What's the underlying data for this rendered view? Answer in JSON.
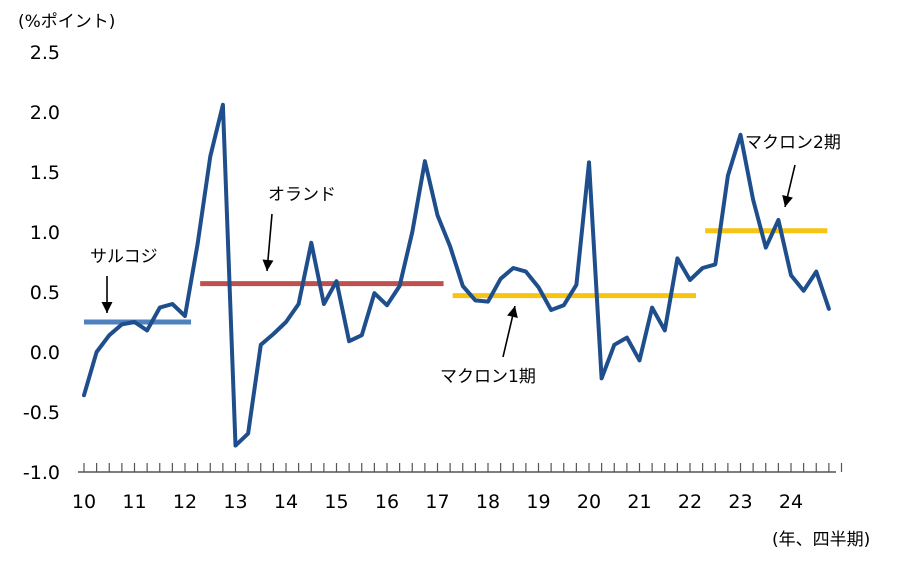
{
  "chart_data": {
    "type": "line",
    "y_unit_label": "(%ポイント)",
    "x_unit_label": "(年、四半期)",
    "ylim": [
      -1.0,
      2.5
    ],
    "y_ticks": [
      "2.5",
      "2.0",
      "1.5",
      "1.0",
      "0.5",
      "0.0",
      "-0.5",
      "-1.0"
    ],
    "y_tick_values": [
      2.5,
      2.0,
      1.5,
      1.0,
      0.5,
      0.0,
      -0.5,
      -1.0
    ],
    "x_year_labels": [
      "10",
      "11",
      "12",
      "13",
      "14",
      "15",
      "16",
      "17",
      "18",
      "19",
      "20",
      "21",
      "22",
      "23",
      "24"
    ],
    "quarters_per_year": 4,
    "total_quarters": 60,
    "grid": false,
    "series": [
      {
        "color": "#1f4e8c",
        "values": [
          -0.36,
          0.0,
          0.14,
          0.23,
          0.25,
          0.18,
          0.37,
          0.4,
          0.3,
          0.9,
          1.63,
          2.06,
          -0.78,
          -0.68,
          0.06,
          0.15,
          0.25,
          0.4,
          0.91,
          0.4,
          0.59,
          0.09,
          0.14,
          0.49,
          0.39,
          0.55,
          1.0,
          1.59,
          1.14,
          0.88,
          0.55,
          0.43,
          0.42,
          0.61,
          0.7,
          0.67,
          0.54,
          0.35,
          0.39,
          0.56,
          1.58,
          -0.22,
          0.06,
          0.12,
          -0.07,
          0.37,
          0.18,
          0.78,
          0.6,
          0.7,
          0.73,
          1.47,
          1.81,
          1.27,
          0.87,
          1.1,
          0.64,
          0.51,
          0.67,
          0.36
        ]
      }
    ],
    "periods": [
      {
        "label": "サルコジ",
        "start": 0.0,
        "end": 2.12,
        "value": 0.25,
        "color": "#4f81bd"
      },
      {
        "label": "オランド",
        "start": 2.3,
        "end": 7.12,
        "value": 0.57,
        "color": "#c0504d"
      },
      {
        "label": "マクロン1期",
        "start": 7.3,
        "end": 12.12,
        "value": 0.47,
        "color": "#f7c412"
      },
      {
        "label": "マクロン2期",
        "start": 12.3,
        "end": 14.72,
        "value": 1.01,
        "color": "#f7c412"
      }
    ],
    "annotations": [
      {
        "label": "サルコジ"
      },
      {
        "label": "オランド"
      },
      {
        "label": "マクロン1期"
      },
      {
        "label": "マクロン2期"
      }
    ]
  }
}
